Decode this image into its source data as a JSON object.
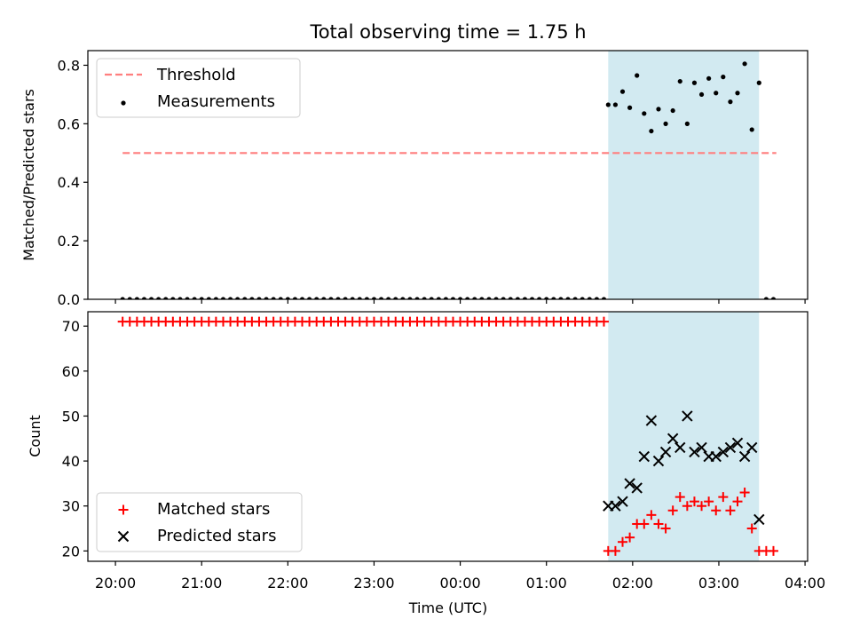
{
  "figure": {
    "title": "Total observing time = 1.75 h",
    "xlabel": "Time (UTC)",
    "x_ticks": [
      "20:00",
      "21:00",
      "22:00",
      "23:00",
      "00:00",
      "01:00",
      "02:00",
      "03:00",
      "04:00"
    ]
  },
  "colors": {
    "threshold": "#ff7f7f",
    "measurements": "#000000",
    "matched": "#ff0000",
    "predicted": "#000000",
    "observing_window": "#add8e6"
  },
  "chart_data": [
    {
      "type": "scatter",
      "ylabel": "Matched/Predicted stars",
      "xlim_hours": [
        -0.32,
        8.03
      ],
      "ylim": [
        0,
        0.85
      ],
      "y_ticks": [
        "0.0",
        "0.2",
        "0.4",
        "0.6",
        "0.8"
      ],
      "grid": false,
      "legend_position": "top-left",
      "observing_window": {
        "start": "01:43",
        "end": "03:28"
      },
      "threshold": {
        "name": "Threshold",
        "y": 0.5,
        "x_start": "20:05",
        "x_end": "03:40"
      },
      "measurements": {
        "name": "Measurements",
        "zero_times": [
          "20:05",
          "20:10",
          "20:15",
          "20:20",
          "20:25",
          "20:30",
          "20:35",
          "20:40",
          "20:45",
          "20:50",
          "20:55",
          "21:00",
          "21:05",
          "21:10",
          "21:15",
          "21:20",
          "21:25",
          "21:30",
          "21:35",
          "21:40",
          "21:45",
          "21:50",
          "21:55",
          "22:00",
          "22:05",
          "22:10",
          "22:15",
          "22:20",
          "22:25",
          "22:30",
          "22:35",
          "22:40",
          "22:45",
          "22:50",
          "22:55",
          "23:00",
          "23:05",
          "23:10",
          "23:15",
          "23:20",
          "23:25",
          "23:30",
          "23:35",
          "23:40",
          "23:45",
          "23:50",
          "23:55",
          "00:00",
          "00:05",
          "00:10",
          "00:15",
          "00:20",
          "00:25",
          "00:30",
          "00:35",
          "00:40",
          "00:45",
          "00:50",
          "00:55",
          "01:00",
          "01:05",
          "01:10",
          "01:15",
          "01:20",
          "01:25",
          "01:30",
          "01:35",
          "01:40",
          "03:33",
          "03:38"
        ],
        "window_points": [
          {
            "t": "01:43",
            "y": 0.665
          },
          {
            "t": "01:48",
            "y": 0.665
          },
          {
            "t": "01:53",
            "y": 0.71
          },
          {
            "t": "01:58",
            "y": 0.655
          },
          {
            "t": "02:03",
            "y": 0.765
          },
          {
            "t": "02:08",
            "y": 0.635
          },
          {
            "t": "02:13",
            "y": 0.575
          },
          {
            "t": "02:18",
            "y": 0.65
          },
          {
            "t": "02:23",
            "y": 0.6
          },
          {
            "t": "02:28",
            "y": 0.645
          },
          {
            "t": "02:33",
            "y": 0.745
          },
          {
            "t": "02:38",
            "y": 0.6
          },
          {
            "t": "02:43",
            "y": 0.74
          },
          {
            "t": "02:48",
            "y": 0.7
          },
          {
            "t": "02:53",
            "y": 0.755
          },
          {
            "t": "02:58",
            "y": 0.705
          },
          {
            "t": "03:03",
            "y": 0.76
          },
          {
            "t": "03:08",
            "y": 0.675
          },
          {
            "t": "03:13",
            "y": 0.705
          },
          {
            "t": "03:18",
            "y": 0.805
          },
          {
            "t": "03:23",
            "y": 0.58
          },
          {
            "t": "03:28",
            "y": 0.74
          }
        ]
      }
    },
    {
      "type": "scatter",
      "ylabel": "Count",
      "xlim_hours": [
        -0.32,
        8.03
      ],
      "ylim": [
        17.7,
        73.2
      ],
      "y_ticks": [
        "20",
        "30",
        "40",
        "50",
        "60",
        "70"
      ],
      "grid": false,
      "legend_position": "bottom-left",
      "observing_window": {
        "start": "01:43",
        "end": "03:28"
      },
      "series": [
        {
          "name": "Matched stars",
          "marker": "plus",
          "constant_run": {
            "from": "20:05",
            "to": "01:40",
            "step_minutes": 5,
            "y": 71
          },
          "points": [
            {
              "t": "01:43",
              "y": 20
            },
            {
              "t": "01:48",
              "y": 20
            },
            {
              "t": "01:53",
              "y": 22
            },
            {
              "t": "01:58",
              "y": 23
            },
            {
              "t": "02:03",
              "y": 26
            },
            {
              "t": "02:08",
              "y": 26
            },
            {
              "t": "02:13",
              "y": 28
            },
            {
              "t": "02:18",
              "y": 26
            },
            {
              "t": "02:23",
              "y": 25
            },
            {
              "t": "02:28",
              "y": 29
            },
            {
              "t": "02:33",
              "y": 32
            },
            {
              "t": "02:38",
              "y": 30
            },
            {
              "t": "02:43",
              "y": 31
            },
            {
              "t": "02:48",
              "y": 30
            },
            {
              "t": "02:53",
              "y": 31
            },
            {
              "t": "02:58",
              "y": 29
            },
            {
              "t": "03:03",
              "y": 32
            },
            {
              "t": "03:08",
              "y": 29
            },
            {
              "t": "03:13",
              "y": 31
            },
            {
              "t": "03:18",
              "y": 33
            },
            {
              "t": "03:23",
              "y": 25
            },
            {
              "t": "03:28",
              "y": 20
            },
            {
              "t": "03:33",
              "y": 20
            },
            {
              "t": "03:38",
              "y": 20
            }
          ]
        },
        {
          "name": "Predicted stars",
          "marker": "x",
          "points": [
            {
              "t": "01:43",
              "y": 30
            },
            {
              "t": "01:48",
              "y": 30
            },
            {
              "t": "01:53",
              "y": 31
            },
            {
              "t": "01:58",
              "y": 35
            },
            {
              "t": "02:03",
              "y": 34
            },
            {
              "t": "02:08",
              "y": 41
            },
            {
              "t": "02:13",
              "y": 49
            },
            {
              "t": "02:18",
              "y": 40
            },
            {
              "t": "02:23",
              "y": 42
            },
            {
              "t": "02:28",
              "y": 45
            },
            {
              "t": "02:33",
              "y": 43
            },
            {
              "t": "02:38",
              "y": 50
            },
            {
              "t": "02:43",
              "y": 42
            },
            {
              "t": "02:48",
              "y": 43
            },
            {
              "t": "02:53",
              "y": 41
            },
            {
              "t": "02:58",
              "y": 41
            },
            {
              "t": "03:03",
              "y": 42
            },
            {
              "t": "03:08",
              "y": 43
            },
            {
              "t": "03:13",
              "y": 44
            },
            {
              "t": "03:18",
              "y": 41
            },
            {
              "t": "03:23",
              "y": 43
            },
            {
              "t": "03:28",
              "y": 27
            }
          ]
        }
      ]
    }
  ]
}
